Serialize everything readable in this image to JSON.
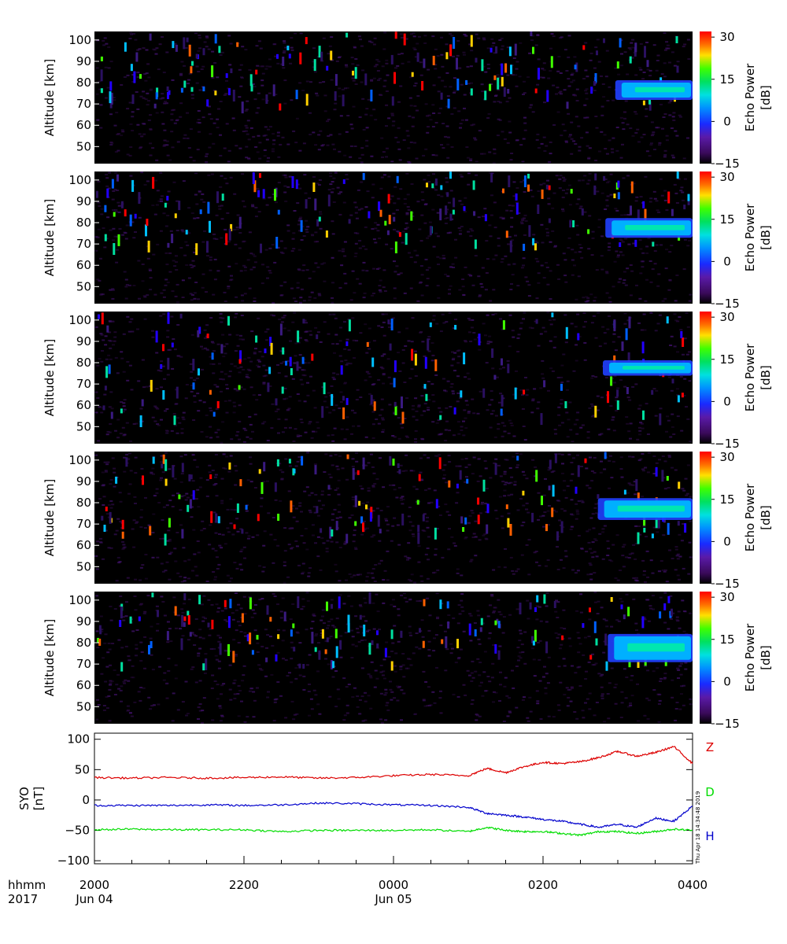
{
  "chart_data": [
    {
      "type": "heatmap",
      "panel": 1,
      "ylabel": "Altitude [km]",
      "ylim": [
        42,
        104
      ],
      "yticks": [
        50,
        60,
        70,
        80,
        90,
        100
      ],
      "xlim": [
        "2017-06-04 20:00",
        "2017-06-05 04:00"
      ],
      "colorbar": {
        "label": "Echo Power [dB]",
        "range": [
          -15,
          32
        ],
        "ticks": [
          -15,
          0,
          15,
          30
        ]
      },
      "features": [
        {
          "kind": "echo_layer",
          "start": "02:58",
          "end": "04:00",
          "altitude_km": [
            73,
            80
          ],
          "power_db": [
            5,
            15
          ]
        },
        {
          "kind": "sporadic_echoes",
          "altitude_km": [
            70,
            104
          ],
          "power_db": [
            -5,
            30
          ]
        }
      ]
    },
    {
      "type": "heatmap",
      "panel": 2,
      "ylabel": "Altitude [km]",
      "ylim": [
        42,
        104
      ],
      "yticks": [
        50,
        60,
        70,
        80,
        90,
        100
      ],
      "xlim": [
        "2017-06-04 20:00",
        "2017-06-05 04:00"
      ],
      "colorbar": {
        "label": "Echo Power [dB]",
        "range": [
          -15,
          32
        ],
        "ticks": [
          -15,
          0,
          15,
          30
        ]
      },
      "features": [
        {
          "kind": "echo_layer",
          "start": "02:50",
          "end": "04:00",
          "altitude_km": [
            74,
            81
          ],
          "power_db": [
            5,
            15
          ]
        },
        {
          "kind": "sporadic_echoes",
          "altitude_km": [
            70,
            104
          ],
          "power_db": [
            -5,
            30
          ]
        }
      ]
    },
    {
      "type": "heatmap",
      "panel": 3,
      "ylabel": "Altitude [km]",
      "ylim": [
        42,
        104
      ],
      "yticks": [
        50,
        60,
        70,
        80,
        90,
        100
      ],
      "xlim": [
        "2017-06-04 20:00",
        "2017-06-05 04:00"
      ],
      "colorbar": {
        "label": "Echo Power [dB]",
        "range": [
          -15,
          32
        ],
        "ticks": [
          -15,
          0,
          15,
          30
        ]
      },
      "features": [
        {
          "kind": "echo_layer",
          "start": "02:48",
          "end": "04:00",
          "altitude_km": [
            75,
            80
          ],
          "power_db": [
            5,
            25
          ]
        },
        {
          "kind": "sporadic_echoes",
          "altitude_km": [
            55,
            104
          ],
          "power_db": [
            -5,
            30
          ]
        }
      ]
    },
    {
      "type": "heatmap",
      "panel": 4,
      "ylabel": "Altitude [km]",
      "ylim": [
        42,
        104
      ],
      "yticks": [
        50,
        60,
        70,
        80,
        90,
        100
      ],
      "xlim": [
        "2017-06-04 20:00",
        "2017-06-05 04:00"
      ],
      "colorbar": {
        "label": "Echo Power [dB]",
        "range": [
          -15,
          32
        ],
        "ticks": [
          -15,
          0,
          15,
          30
        ]
      },
      "features": [
        {
          "kind": "echo_layer",
          "start": "02:44",
          "end": "04:00",
          "altitude_km": [
            73,
            81
          ],
          "power_db": [
            5,
            15
          ]
        },
        {
          "kind": "sporadic_echoes",
          "altitude_km": [
            65,
            104
          ],
          "power_db": [
            -5,
            30
          ]
        }
      ]
    },
    {
      "type": "heatmap",
      "panel": 5,
      "ylabel": "Altitude [km]",
      "ylim": [
        42,
        104
      ],
      "yticks": [
        50,
        60,
        70,
        80,
        90,
        100
      ],
      "xlim": [
        "2017-06-04 20:00",
        "2017-06-05 04:00"
      ],
      "colorbar": {
        "label": "Echo Power [dB]",
        "range": [
          -15,
          32
        ],
        "ticks": [
          -15,
          0,
          15,
          30
        ]
      },
      "features": [
        {
          "kind": "echo_layer",
          "start": "02:52",
          "end": "04:00",
          "altitude_km": [
            72,
            83
          ],
          "power_db": [
            5,
            12
          ]
        },
        {
          "kind": "sporadic_echoes",
          "altitude_km": [
            70,
            104
          ],
          "power_db": [
            -5,
            30
          ]
        }
      ]
    },
    {
      "type": "line",
      "panel": 6,
      "ylabel": "SYO [nT]",
      "ylim": [
        -105,
        110
      ],
      "yticks": [
        -100,
        -50,
        0,
        50,
        100
      ],
      "xlim": [
        "2017-06-04 20:00",
        "2017-06-05 04:00"
      ],
      "x": [
        "2017-06-04 20:00",
        "2017-06-04 20:30",
        "2017-06-04 21:00",
        "2017-06-04 21:30",
        "2017-06-04 22:00",
        "2017-06-04 22:30",
        "2017-06-04 23:00",
        "2017-06-04 23:30",
        "2017-06-05 00:00",
        "2017-06-05 00:30",
        "2017-06-05 01:00",
        "2017-06-05 01:15",
        "2017-06-05 01:30",
        "2017-06-05 01:45",
        "2017-06-05 02:00",
        "2017-06-05 02:15",
        "2017-06-05 02:30",
        "2017-06-05 02:45",
        "2017-06-05 03:00",
        "2017-06-05 03:15",
        "2017-06-05 03:30",
        "2017-06-05 03:45",
        "2017-06-05 04:00"
      ],
      "series": [
        {
          "name": "Z",
          "color": "#dd0000",
          "values": [
            37,
            36,
            37,
            36,
            37,
            38,
            36,
            37,
            40,
            42,
            40,
            52,
            45,
            55,
            62,
            60,
            63,
            70,
            80,
            72,
            78,
            88,
            60
          ]
        },
        {
          "name": "D",
          "color": "#00dd00",
          "values": [
            -49,
            -48,
            -49,
            -49,
            -49,
            -52,
            -50,
            -50,
            -50,
            -49,
            -52,
            -45,
            -50,
            -52,
            -52,
            -55,
            -58,
            -52,
            -52,
            -55,
            -52,
            -48,
            -50
          ]
        },
        {
          "name": "H",
          "color": "#0000cc",
          "values": [
            -9,
            -9,
            -9,
            -8,
            -9,
            -8,
            -5,
            -6,
            -8,
            -9,
            -12,
            -22,
            -25,
            -28,
            -32,
            -35,
            -40,
            -45,
            -40,
            -45,
            -30,
            -35,
            -10
          ]
        }
      ]
    }
  ],
  "x_axis": {
    "row1_label": "hhmm",
    "row2_label": "2017",
    "ticks": [
      {
        "time": "2000",
        "date": "Jun 04"
      },
      {
        "time": "2200",
        "date": ""
      },
      {
        "time": "0000",
        "date": "Jun 05"
      },
      {
        "time": "0200",
        "date": ""
      },
      {
        "time": "0400",
        "date": ""
      }
    ]
  },
  "timestamp": "Thu Apr 18 14:34:48 2019"
}
